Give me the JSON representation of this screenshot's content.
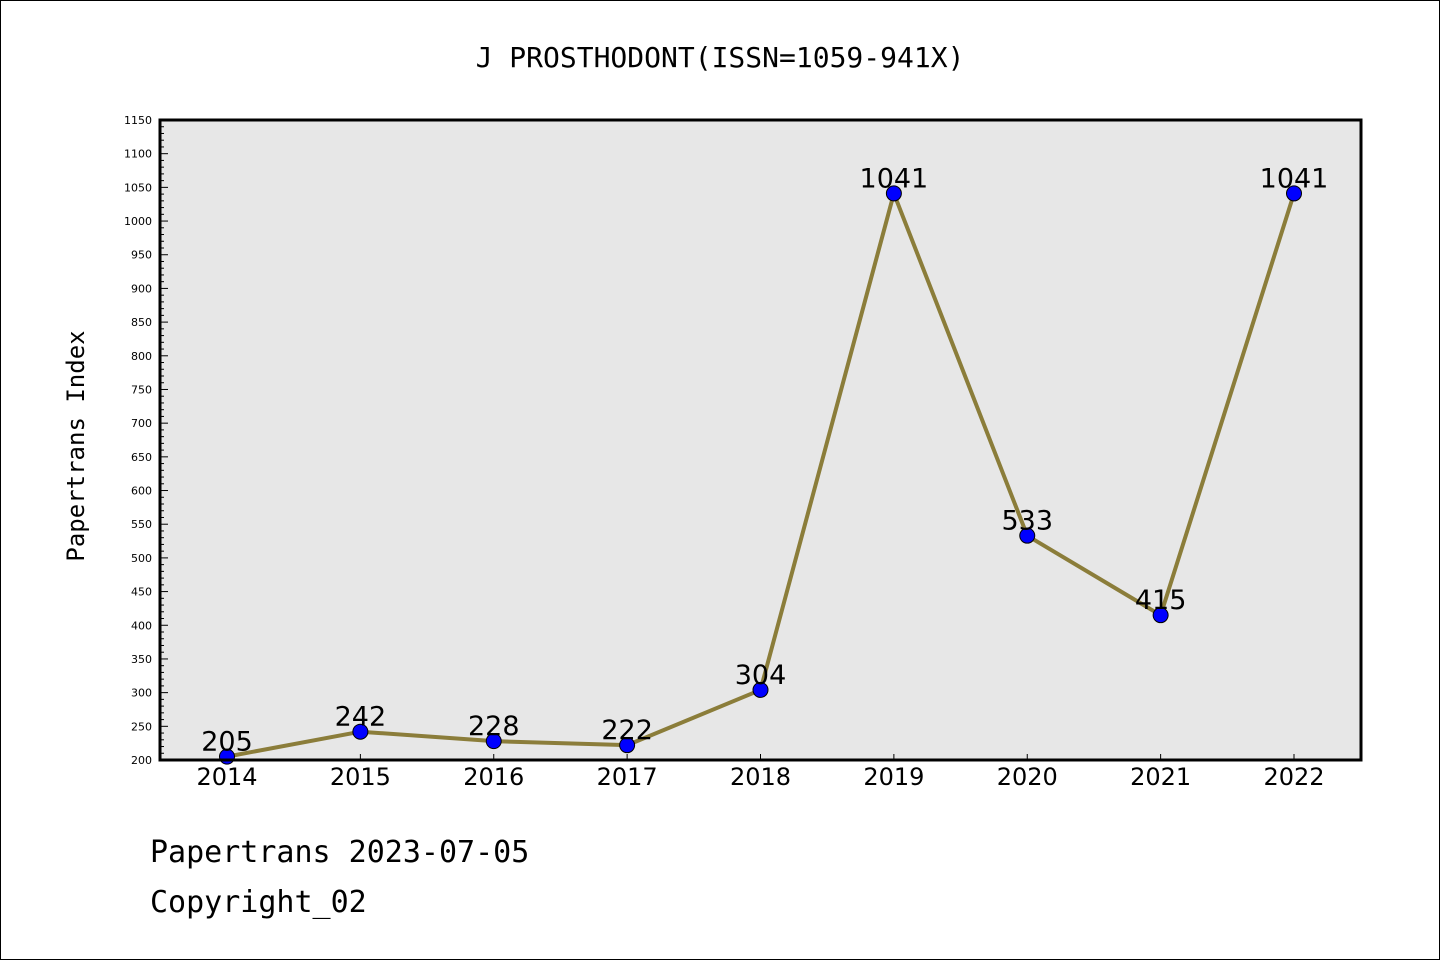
{
  "chart_data": {
    "type": "line",
    "title": "J PROSTHODONT(ISSN=1059-941X)",
    "xlabel": "",
    "ylabel": "Papertrans Index",
    "categories": [
      "2014",
      "2015",
      "2016",
      "2017",
      "2018",
      "2019",
      "2020",
      "2021",
      "2022"
    ],
    "values": [
      205,
      242,
      228,
      222,
      304,
      1041,
      533,
      415,
      1041
    ],
    "data_labels": [
      "205",
      "242",
      "228",
      "222",
      "304",
      "1041",
      "533",
      "415",
      "1041"
    ],
    "ylim": [
      200,
      1150
    ],
    "yticks": [
      200,
      250,
      300,
      350,
      400,
      450,
      500,
      550,
      600,
      650,
      700,
      750,
      800,
      850,
      900,
      950,
      1000,
      1050,
      1100,
      1150
    ],
    "ytick_labels": [
      "200",
      "250",
      "300",
      "350",
      "400",
      "450",
      "500",
      "550",
      "600",
      "650",
      "700",
      "750",
      "800",
      "850",
      "900",
      "950",
      "1000",
      "1050",
      "1100",
      "1150"
    ],
    "grid": false,
    "colors": {
      "line": "#8B7D3A",
      "marker": "#0000FF",
      "plot_background": "#E7E7E7"
    }
  },
  "footer": {
    "line1": "Papertrans 2023-07-05",
    "line2": "Copyright_02"
  }
}
